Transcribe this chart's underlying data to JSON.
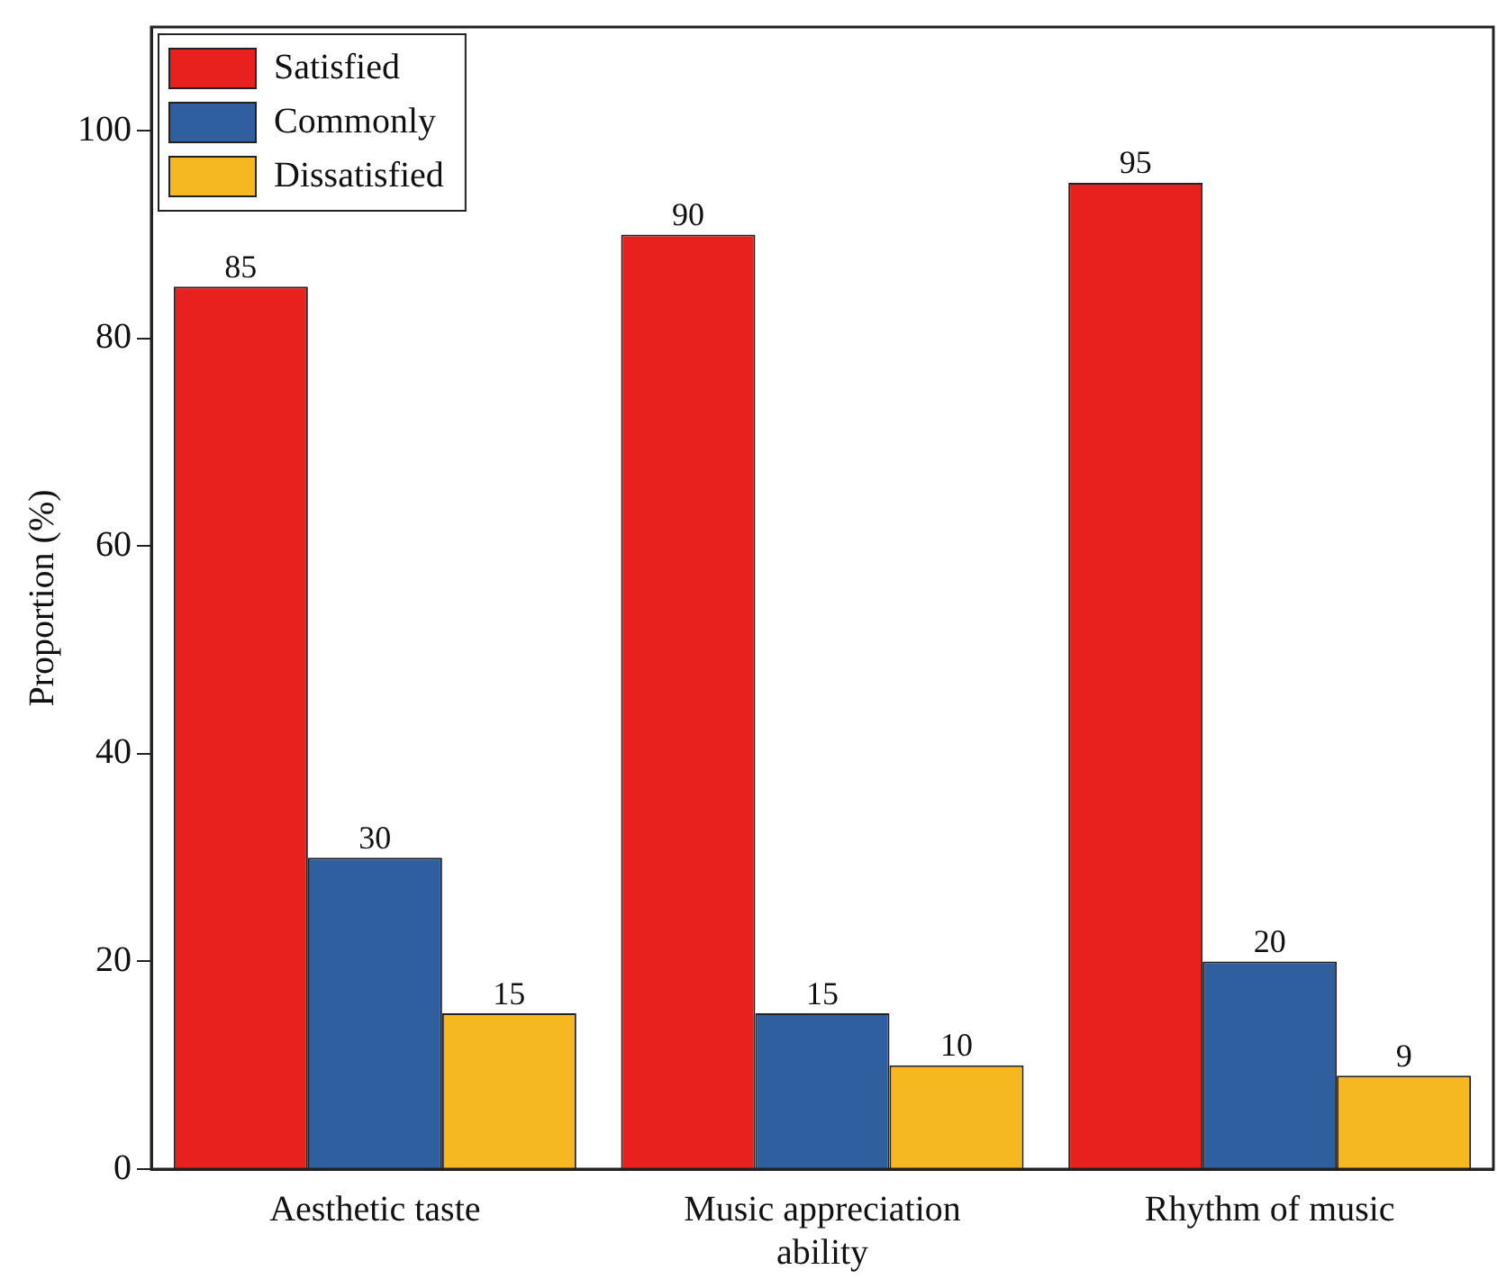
{
  "chart_data": {
    "type": "bar",
    "ylabel": "Proportion (%)",
    "categories": [
      "Aesthetic taste",
      [
        "Music appreciation",
        "ability"
      ],
      "Rhythm of music"
    ],
    "series": [
      {
        "name": "Satisfied",
        "color": "#e8201e",
        "values": [
          85,
          90,
          95
        ]
      },
      {
        "name": "Commonly",
        "color": "#2f5f9e",
        "values": [
          30,
          15,
          20
        ]
      },
      {
        "name": "Dissatisfied",
        "color": "#f5b820",
        "values": [
          15,
          10,
          9
        ]
      }
    ],
    "ylim": [
      0,
      110
    ],
    "yticks": [
      0,
      20,
      40,
      60,
      80,
      100
    ],
    "grid": false,
    "legend": "top left",
    "data_labels": true
  }
}
